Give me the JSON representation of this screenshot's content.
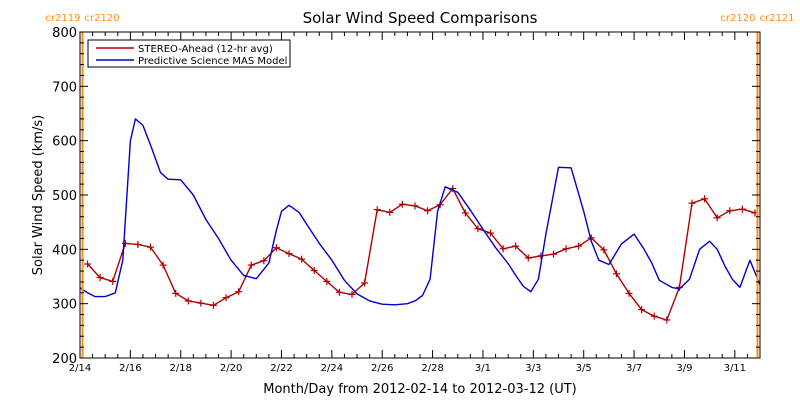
{
  "chart_data": {
    "type": "line",
    "title": "Solar Wind Speed Comparisons",
    "xlabel": "Month/Day from 2012-02-14 to 2012-03-12 (UT)",
    "ylabel": "Solar Wind Speed (km/s)",
    "ylim": [
      200,
      800
    ],
    "xlim_days": [
      0,
      27
    ],
    "y_ticks": [
      "200",
      "300",
      "400",
      "500",
      "600",
      "700",
      "800"
    ],
    "x_ticks": [
      {
        "label": "2/14",
        "day": 0
      },
      {
        "label": "2/16",
        "day": 2
      },
      {
        "label": "2/18",
        "day": 4
      },
      {
        "label": "2/20",
        "day": 6
      },
      {
        "label": "2/22",
        "day": 8
      },
      {
        "label": "2/24",
        "day": 10
      },
      {
        "label": "2/26",
        "day": 12
      },
      {
        "label": "2/28",
        "day": 14
      },
      {
        "label": "3/1",
        "day": 16
      },
      {
        "label": "3/3",
        "day": 18
      },
      {
        "label": "3/5",
        "day": 20
      },
      {
        "label": "3/7",
        "day": 22
      },
      {
        "label": "3/9",
        "day": 24
      },
      {
        "label": "3/11",
        "day": 26
      }
    ],
    "carrington_markers": [
      {
        "label_left": "cr2119",
        "label_right": "cr2120",
        "day": 0.1
      },
      {
        "label_left": "cr2120",
        "label_right": "cr2121",
        "day": 26.9
      }
    ],
    "marker_color": "#ff8c1a",
    "legend": {
      "placement": "top-left"
    },
    "series": [
      {
        "name": "STEREO-Ahead (12-hr avg)",
        "color": "#b00000",
        "markers": true,
        "x": [
          0.3,
          0.8,
          1.3,
          1.8,
          2.3,
          2.8,
          3.3,
          3.8,
          4.3,
          4.8,
          5.3,
          5.8,
          6.3,
          6.8,
          7.3,
          7.8,
          8.3,
          8.8,
          9.3,
          9.8,
          10.3,
          10.8,
          11.3,
          11.8,
          12.3,
          12.8,
          13.3,
          13.8,
          14.3,
          14.8,
          15.3,
          15.8,
          16.3,
          16.8,
          17.3,
          17.8,
          18.3,
          18.8,
          19.3,
          19.8,
          20.3,
          20.8,
          21.3,
          21.8,
          22.3,
          22.8,
          23.3,
          23.8,
          24.3,
          24.8,
          25.3,
          25.8,
          26.3,
          26.8
        ],
        "values": [
          373,
          348,
          341,
          411,
          409,
          404,
          371,
          319,
          305,
          301,
          297,
          311,
          322,
          371,
          379,
          403,
          392,
          382,
          361,
          341,
          321,
          317,
          338,
          473,
          468,
          483,
          480,
          471,
          482,
          512,
          467,
          438,
          430,
          401,
          406,
          384,
          388,
          391,
          401,
          406,
          421,
          399,
          355,
          319,
          289,
          277,
          270,
          330,
          485,
          493,
          458,
          471,
          474,
          467
        ]
      },
      {
        "name": "Predictive Science MAS Model",
        "color": "#0000cc",
        "markers": false,
        "x": [
          0,
          0.3,
          0.6,
          1.0,
          1.4,
          1.7,
          2.0,
          2.2,
          2.5,
          2.8,
          3.2,
          3.5,
          4.0,
          4.5,
          5.0,
          5.5,
          6.0,
          6.5,
          7.0,
          7.5,
          7.8,
          8.0,
          8.3,
          8.7,
          9.0,
          9.5,
          10.0,
          10.5,
          11.0,
          11.5,
          12.0,
          12.5,
          13.0,
          13.3,
          13.6,
          13.9,
          14.2,
          14.5,
          15.0,
          15.5,
          16.0,
          16.5,
          17.0,
          17.3,
          17.6,
          17.9,
          18.2,
          18.5,
          19.0,
          19.5,
          20.0,
          20.3,
          20.6,
          21.0,
          21.5,
          22.0,
          22.4,
          22.7,
          23.0,
          23.5,
          23.8,
          24.2,
          24.6,
          25.0,
          25.3,
          25.6,
          25.9,
          26.2,
          26.6,
          27.0
        ],
        "values": [
          329,
          320,
          313,
          313,
          320,
          380,
          600,
          640,
          628,
          592,
          541,
          529,
          528,
          500,
          455,
          420,
          380,
          352,
          346,
          375,
          435,
          470,
          481,
          468,
          446,
          411,
          380,
          343,
          318,
          305,
          299,
          298,
          300,
          305,
          315,
          345,
          470,
          515,
          505,
          472,
          437,
          403,
          374,
          352,
          332,
          322,
          345,
          428,
          551,
          550,
          470,
          415,
          380,
          372,
          410,
          428,
          400,
          375,
          343,
          330,
          327,
          345,
          400,
          415,
          400,
          370,
          345,
          330,
          380,
          335
        ]
      }
    ]
  }
}
